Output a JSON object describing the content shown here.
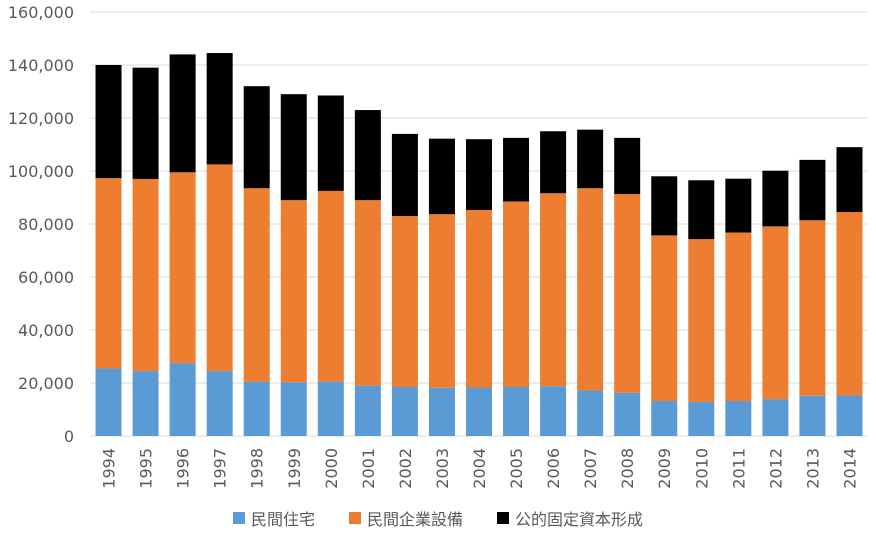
{
  "chart_data": {
    "type": "bar",
    "stacked": true,
    "categories": [
      "1994",
      "1995",
      "1996",
      "1997",
      "1998",
      "1999",
      "2000",
      "2001",
      "2002",
      "2003",
      "2004",
      "2005",
      "2006",
      "2007",
      "2008",
      "2009",
      "2010",
      "2011",
      "2012",
      "2013",
      "2014"
    ],
    "series": [
      {
        "name": "民間住宅",
        "color": "#5B9BD5",
        "values": [
          25500,
          24500,
          27500,
          24500,
          20500,
          20300,
          20500,
          19000,
          18500,
          18200,
          18300,
          18500,
          18800,
          17200,
          16300,
          13200,
          12800,
          13200,
          13900,
          15200,
          15300
        ]
      },
      {
        "name": "民間企業設備",
        "color": "#ED7D31",
        "values": [
          71800,
          72500,
          72000,
          78000,
          73000,
          68700,
          72000,
          70000,
          64500,
          65500,
          67000,
          70000,
          72800,
          76300,
          75000,
          62500,
          61500,
          63600,
          65200,
          66200,
          69200
        ]
      },
      {
        "name": "公的固定資本形成",
        "color": "#000000",
        "values": [
          42700,
          42000,
          44500,
          42000,
          38500,
          40000,
          36000,
          34000,
          31000,
          28500,
          26700,
          24000,
          23400,
          22100,
          21200,
          22300,
          22200,
          20300,
          21000,
          22800,
          24500
        ]
      }
    ],
    "ylim": [
      0,
      160000
    ],
    "yticks": [
      "0",
      "20,000",
      "40,000",
      "60,000",
      "80,000",
      "100,000",
      "120,000",
      "140,000",
      "160,000"
    ],
    "ytick_values": [
      0,
      20000,
      40000,
      60000,
      80000,
      100000,
      120000,
      140000,
      160000
    ],
    "grid": true,
    "legend_position": "bottom"
  }
}
